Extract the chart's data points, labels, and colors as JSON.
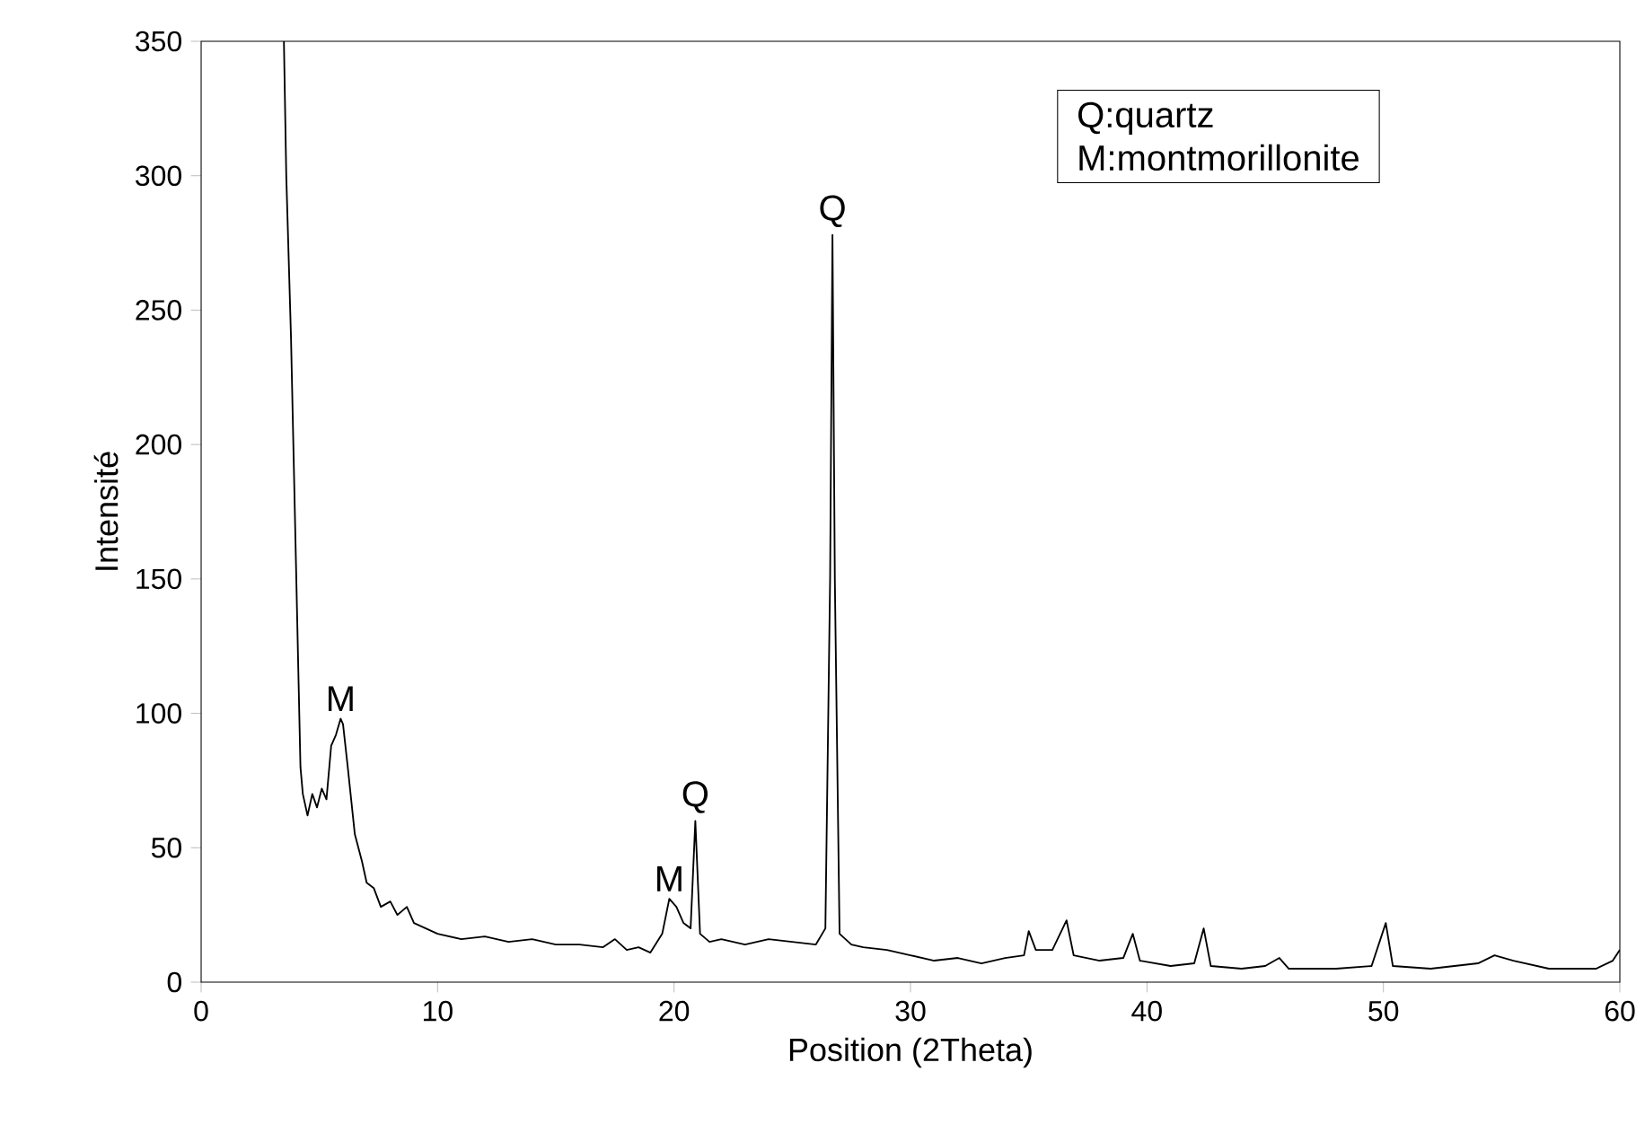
{
  "chart_data": {
    "type": "line",
    "xlabel": "Position (2Theta)",
    "ylabel": "Intensité",
    "xlim": [
      0,
      60
    ],
    "ylim": [
      0,
      350
    ],
    "xticks": [
      0,
      10,
      20,
      30,
      40,
      50,
      60
    ],
    "yticks": [
      0,
      50,
      100,
      150,
      200,
      250,
      300,
      350
    ],
    "marker": "none",
    "line_style": "solid",
    "x": [
      3.5,
      3.6,
      3.8,
      4.0,
      4.2,
      4.3,
      4.5,
      4.7,
      4.9,
      5.1,
      5.3,
      5.5,
      5.7,
      5.9,
      6.0,
      6.2,
      6.5,
      6.8,
      7.0,
      7.3,
      7.6,
      8.0,
      8.3,
      8.7,
      9.0,
      9.5,
      10,
      11,
      12,
      13,
      14,
      15,
      16,
      17,
      17.5,
      18,
      18.5,
      19,
      19.5,
      19.8,
      20.1,
      20.4,
      20.7,
      20.9,
      21.1,
      21.5,
      22,
      23,
      24,
      25,
      26,
      26.4,
      26.6,
      26.7,
      26.8,
      27.0,
      27.5,
      28,
      29,
      30,
      31,
      32,
      33,
      34,
      34.8,
      35,
      35.3,
      36,
      36.6,
      36.9,
      38,
      39,
      39.4,
      39.7,
      41,
      42,
      42.4,
      42.7,
      44,
      45,
      45.6,
      46,
      48,
      49.5,
      50.1,
      50.4,
      52,
      54,
      54.7,
      55.5,
      57,
      59,
      59.7,
      60
    ],
    "series": [
      {
        "color": "#000000",
        "values": [
          350,
          300,
          240,
          160,
          80,
          70,
          62,
          70,
          65,
          72,
          68,
          88,
          92,
          98,
          96,
          80,
          55,
          45,
          37,
          35,
          28,
          30,
          25,
          28,
          22,
          20,
          18,
          16,
          17,
          15,
          16,
          14,
          14,
          13,
          16,
          12,
          13,
          11,
          18,
          31,
          28,
          22,
          20,
          60,
          18,
          15,
          16,
          14,
          16,
          15,
          14,
          20,
          150,
          278,
          150,
          18,
          14,
          13,
          12,
          10,
          8,
          9,
          7,
          9,
          10,
          19,
          12,
          12,
          23,
          10,
          8,
          9,
          18,
          8,
          6,
          7,
          20,
          6,
          5,
          6,
          9,
          5,
          5,
          6,
          22,
          6,
          5,
          7,
          10,
          8,
          5,
          5,
          8,
          12
        ]
      }
    ],
    "annotations": [
      {
        "text": "M",
        "x": 5.9,
        "y": 98
      },
      {
        "text": "M",
        "x": 19.8,
        "y": 31
      },
      {
        "text": "Q",
        "x": 20.9,
        "y": 60
      },
      {
        "text": "Q",
        "x": 26.7,
        "y": 278
      },
      "Q:quartz",
      "M:montmorillonite"
    ]
  }
}
